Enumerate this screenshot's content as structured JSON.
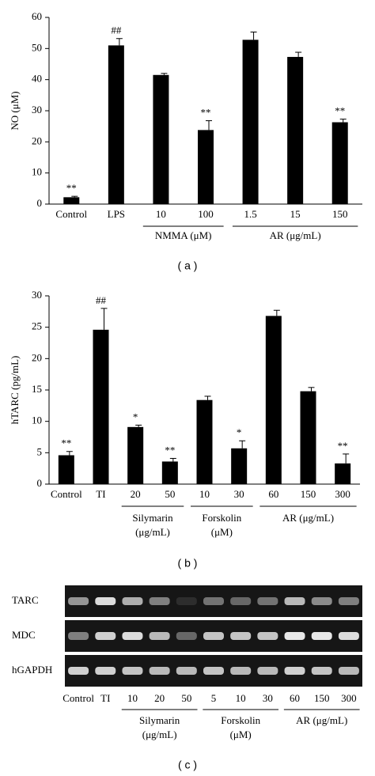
{
  "chart_data": [
    {
      "type": "bar",
      "y_label": "NO (μM)",
      "caption": "( a )",
      "categories": [
        "Control",
        "LPS",
        "10",
        "100",
        "1.5",
        "15",
        "150"
      ],
      "values": [
        2.2,
        51,
        41.5,
        23.8,
        52.8,
        47.3,
        26.3
      ],
      "errors": [
        0.3,
        2.2,
        0.5,
        3,
        2.5,
        1.5,
        1
      ],
      "significance": [
        "**",
        "##",
        null,
        "**",
        null,
        null,
        "**"
      ],
      "groups": [
        {
          "lines": [
            "NMMA (μM)"
          ],
          "from": 2,
          "to": 3
        },
        {
          "lines": [
            "AR (μg/mL)"
          ],
          "from": 4,
          "to": 6
        }
      ],
      "color": "#000000",
      "ylim": [
        0,
        60
      ],
      "yticks": [
        0,
        10,
        20,
        30,
        40,
        50,
        60
      ]
    },
    {
      "type": "bar",
      "y_label": "hTARC (pg/mL)",
      "caption": "( b )",
      "categories": [
        "Control",
        "TI",
        "20",
        "50",
        "10",
        "30",
        "60",
        "150",
        "300"
      ],
      "values": [
        4.6,
        24.6,
        9.1,
        3.6,
        13.4,
        5.7,
        26.8,
        14.8,
        3.3
      ],
      "errors": [
        0.6,
        3.4,
        0.3,
        0.5,
        0.6,
        1.2,
        0.9,
        0.6,
        1.5
      ],
      "significance": [
        "**",
        "##",
        "*",
        "**",
        null,
        "*",
        null,
        null,
        "**"
      ],
      "groups": [
        {
          "lines": [
            "Silymarin",
            "(μg/mL)"
          ],
          "from": 2,
          "to": 3
        },
        {
          "lines": [
            "Forskolin",
            "(μM)"
          ],
          "from": 4,
          "to": 5
        },
        {
          "lines": [
            "AR (μg/mL)"
          ],
          "from": 6,
          "to": 8
        }
      ],
      "color": "#000000",
      "ylim": [
        0,
        30
      ],
      "yticks": [
        0,
        5,
        10,
        15,
        20,
        25,
        30
      ]
    }
  ],
  "gel_panel": {
    "caption": "( c )",
    "rows": [
      "TARC",
      "MDC",
      "hGAPDH"
    ],
    "lanes": [
      "Control",
      "TI",
      "10",
      "20",
      "50",
      "5",
      "10",
      "30",
      "60",
      "150",
      "300"
    ],
    "groups": [
      {
        "lines": [
          "Silymarin",
          "(μg/mL)"
        ],
        "from": 2,
        "to": 4
      },
      {
        "lines": [
          "Forskolin",
          "(μM)"
        ],
        "from": 5,
        "to": 7
      },
      {
        "lines": [
          "AR (μg/mL)"
        ],
        "from": 8,
        "to": 10
      }
    ]
  }
}
